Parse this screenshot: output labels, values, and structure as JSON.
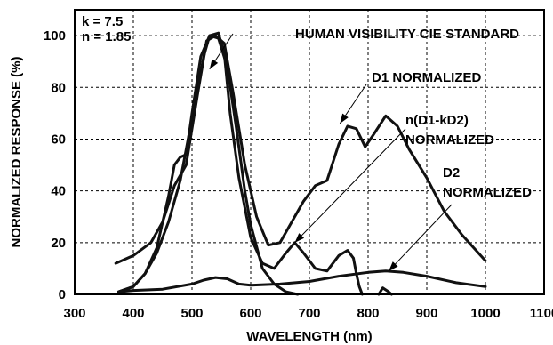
{
  "chart_data": {
    "type": "line",
    "title": "",
    "xlabel": "WAVELENGTH (nm)",
    "ylabel": "NORMALIZED RESPONSE (%)",
    "xlim": [
      300,
      1100
    ],
    "ylim": [
      0,
      110
    ],
    "xticks": [
      300,
      400,
      500,
      600,
      700,
      800,
      900,
      1000,
      1100
    ],
    "yticks": [
      0,
      20,
      40,
      60,
      80,
      100
    ],
    "grid": true,
    "params": [
      "k = 7.5",
      "n = 1.85"
    ],
    "series": [
      {
        "name": "HUMAN VISIBILITY CIE STANDARD",
        "x": [
          375,
          400,
          420,
          440,
          460,
          480,
          500,
          520,
          530,
          545,
          560,
          575,
          590,
          600,
          620,
          640,
          660,
          680
        ],
        "y": [
          1,
          3,
          8,
          16,
          28,
          44,
          68,
          92,
          100,
          99,
          88,
          65,
          40,
          27,
          10,
          4,
          1,
          0
        ]
      },
      {
        "name": "D1 NORMALIZED",
        "x": [
          370,
          400,
          430,
          450,
          470,
          490,
          510,
          525,
          540,
          555,
          570,
          590,
          610,
          630,
          650,
          670,
          690,
          710,
          730,
          750,
          765,
          780,
          795,
          810,
          830,
          850,
          870,
          900,
          930,
          960,
          1000
        ],
        "y": [
          12,
          15,
          20,
          28,
          42,
          50,
          78,
          98,
          100,
          97,
          78,
          50,
          30,
          19,
          20,
          28,
          36,
          42,
          44,
          58,
          65,
          64,
          57,
          62,
          69,
          65,
          56,
          45,
          32,
          23,
          13
        ]
      },
      {
        "name": "n(D1-kD2) NORMALIZED",
        "x": [
          375,
          400,
          420,
          440,
          460,
          470,
          480,
          490,
          500,
          515,
          530,
          545,
          555,
          565,
          580,
          600,
          620,
          640,
          660,
          675,
          690,
          710,
          730,
          750,
          765,
          775,
          780,
          785,
          790
        ],
        "y": [
          1,
          3,
          8,
          18,
          38,
          50,
          53,
          54,
          70,
          92,
          100,
          101,
          93,
          70,
          45,
          22,
          12,
          10,
          16,
          20,
          16,
          10,
          9,
          15,
          17,
          14,
          8,
          3,
          0
        ]
      },
      {
        "name": "D2 NORMALIZED",
        "x": [
          375,
          400,
          450,
          500,
          520,
          540,
          560,
          580,
          600,
          650,
          700,
          750,
          800,
          830,
          860,
          900,
          950,
          1000
        ],
        "y": [
          1,
          1.5,
          2,
          4,
          5.5,
          6.5,
          6,
          4,
          3.5,
          4,
          5,
          7,
          8.5,
          9,
          8.5,
          7,
          4.5,
          3
        ]
      },
      {
        "name": "",
        "x": [
          818,
          825,
          835,
          840
        ],
        "y": [
          0,
          2.5,
          1,
          0
        ]
      }
    ]
  }
}
